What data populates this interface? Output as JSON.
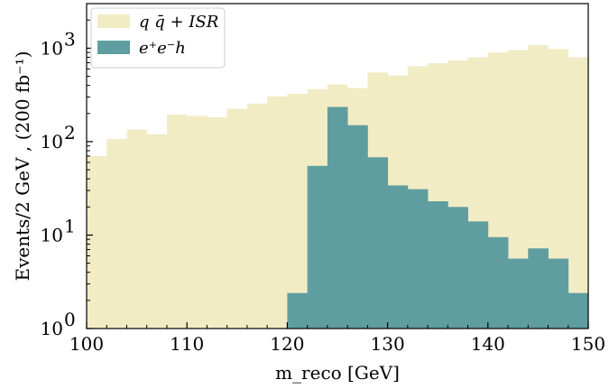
{
  "chart_data": {
    "type": "bar",
    "xlabel": "m_reco [GeV]",
    "ylabel": "Events/2 GeV , (200 fb⁻¹)",
    "xlim": [
      100,
      150
    ],
    "ylim": [
      1,
      3000
    ],
    "yscale": "log",
    "x_ticks": [
      "100",
      "110",
      "120",
      "130",
      "140",
      "150"
    ],
    "y_ticks": [
      {
        "base": "10",
        "exp": "0",
        "value": 1
      },
      {
        "base": "10",
        "exp": "1",
        "value": 10
      },
      {
        "base": "10",
        "exp": "2",
        "value": 100
      },
      {
        "base": "10",
        "exp": "3",
        "value": 1000
      }
    ],
    "legend_position": "top-left",
    "bin_edges": [
      100,
      102,
      104,
      106,
      108,
      110,
      112,
      114,
      116,
      118,
      120,
      122,
      124,
      126,
      128,
      130,
      132,
      134,
      136,
      138,
      140,
      142,
      144,
      146,
      148,
      150
    ],
    "series": [
      {
        "name": "q q̄ + ISR",
        "color": "#f2ecc4",
        "values": [
          70,
          107,
          135,
          120,
          195,
          188,
          183,
          225,
          255,
          305,
          325,
          365,
          410,
          375,
          550,
          510,
          640,
          690,
          740,
          800,
          900,
          950,
          1080,
          980,
          800
        ]
      },
      {
        "name": "e⁺e⁻h",
        "color": "#5f9ea0",
        "values": [
          null,
          null,
          null,
          null,
          null,
          null,
          null,
          null,
          null,
          null,
          2.4,
          55,
          235,
          150,
          68,
          34,
          31,
          23,
          20,
          14,
          9.5,
          5.6,
          7.2,
          5.6,
          2.4
        ]
      }
    ]
  }
}
